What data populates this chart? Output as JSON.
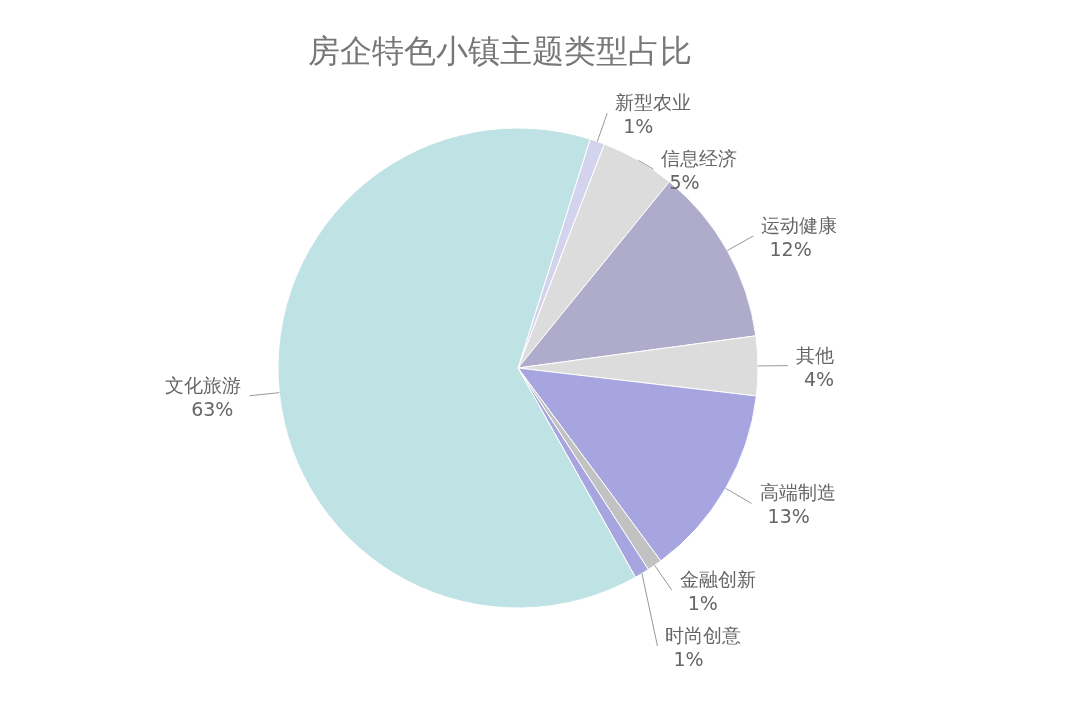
{
  "chart_data": {
    "type": "pie",
    "title": "房企特色小镇主题类型占比",
    "categories": [
      "新型农业",
      "信息经济",
      "运动健康",
      "其他",
      "高端制造",
      "金融创新",
      "时尚创意",
      "文化旅游"
    ],
    "values": [
      1,
      5,
      12,
      4,
      13,
      1,
      1,
      63
    ],
    "value_labels": [
      "1%",
      "5%",
      "12%",
      "4%",
      "13%",
      "1%",
      "1%",
      "63%"
    ],
    "colors": [
      "#d3d3ee",
      "#dcdcdc",
      "#aeacca",
      "#dcdcdc",
      "#a7a5e0",
      "#c2c2c2",
      "#a7a5e0",
      "#bfe2e4"
    ]
  }
}
